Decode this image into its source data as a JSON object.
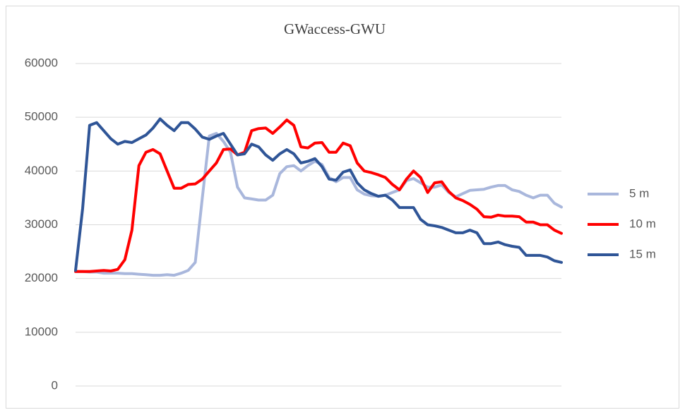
{
  "chart_data": {
    "type": "line",
    "title": "GWaccess-GWU",
    "categories": [
      null,
      null,
      null,
      null,
      null,
      null,
      null,
      null,
      null,
      null,
      null,
      null,
      null,
      null,
      null,
      null,
      null,
      null,
      null,
      null,
      null,
      null,
      null,
      null,
      null,
      null,
      null,
      null,
      null,
      null,
      null,
      null,
      null,
      null,
      null,
      null,
      null,
      null,
      null,
      null,
      null,
      null,
      null,
      null,
      null,
      null,
      null,
      null,
      null,
      null,
      null,
      null,
      null,
      null,
      null,
      null,
      null,
      null,
      null,
      null,
      null,
      null,
      null,
      null,
      null,
      null,
      null,
      null,
      null,
      null
    ],
    "series": [
      {
        "name": "5 m",
        "color": "#a9b7dc",
        "values": [
          21300,
          21300,
          21200,
          21200,
          21000,
          21000,
          21000,
          20900,
          20900,
          20800,
          20700,
          20600,
          20600,
          20700,
          20600,
          21000,
          21500,
          23000,
          35000,
          46500,
          47000,
          45500,
          43500,
          37000,
          35000,
          34800,
          34600,
          34600,
          35500,
          39500,
          40800,
          41000,
          40000,
          41000,
          41800,
          41200,
          38800,
          38000,
          38800,
          38800,
          36500,
          35700,
          35400,
          35300,
          35500,
          36000,
          36500,
          38200,
          38600,
          37800,
          37000,
          37000,
          37400,
          36000,
          35200,
          35800,
          36400,
          36500,
          36600,
          37000,
          37300,
          37300,
          36500,
          36200,
          35500,
          35000,
          35500,
          35500,
          34000,
          33300
        ]
      },
      {
        "name": "10 m",
        "color": "#ff0000",
        "values": [
          21300,
          21300,
          21300,
          21400,
          21500,
          21400,
          21700,
          23500,
          29000,
          41000,
          43500,
          44000,
          43200,
          40000,
          36800,
          36800,
          37500,
          37600,
          38500,
          40000,
          41500,
          44000,
          44100,
          43000,
          43500,
          47500,
          47900,
          48000,
          47000,
          48200,
          49500,
          48500,
          44500,
          44300,
          45200,
          45300,
          43500,
          43500,
          45200,
          44700,
          41500,
          40000,
          39700,
          39300,
          38800,
          37500,
          36500,
          38500,
          40000,
          38800,
          36000,
          37800,
          38000,
          36200,
          35000,
          34500,
          33800,
          32900,
          31500,
          31400,
          31800,
          31600,
          31600,
          31500,
          30500,
          30500,
          30000,
          30000,
          29000,
          28400
        ]
      },
      {
        "name": "15 m",
        "color": "#2f5597",
        "values": [
          21500,
          33000,
          48500,
          49000,
          47500,
          46000,
          45000,
          45500,
          45300,
          46000,
          46700,
          48000,
          49700,
          48500,
          47500,
          49000,
          49000,
          47800,
          46300,
          45900,
          46500,
          47000,
          45000,
          43000,
          43200,
          45000,
          44500,
          43000,
          42000,
          43200,
          44000,
          43200,
          41500,
          41800,
          42300,
          40800,
          38500,
          38300,
          39800,
          40200,
          37800,
          36500,
          35800,
          35300,
          35500,
          34600,
          33200,
          33200,
          33200,
          31000,
          30000,
          29800,
          29500,
          29000,
          28500,
          28500,
          29000,
          28500,
          26500,
          26500,
          26800,
          26300,
          26000,
          25800,
          24300,
          24300,
          24300,
          24000,
          23300,
          23000
        ]
      }
    ],
    "ylim": [
      0,
      60000
    ],
    "yticks": [
      0,
      10000,
      20000,
      30000,
      40000,
      50000,
      60000
    ],
    "grid": true,
    "legend": "right"
  }
}
